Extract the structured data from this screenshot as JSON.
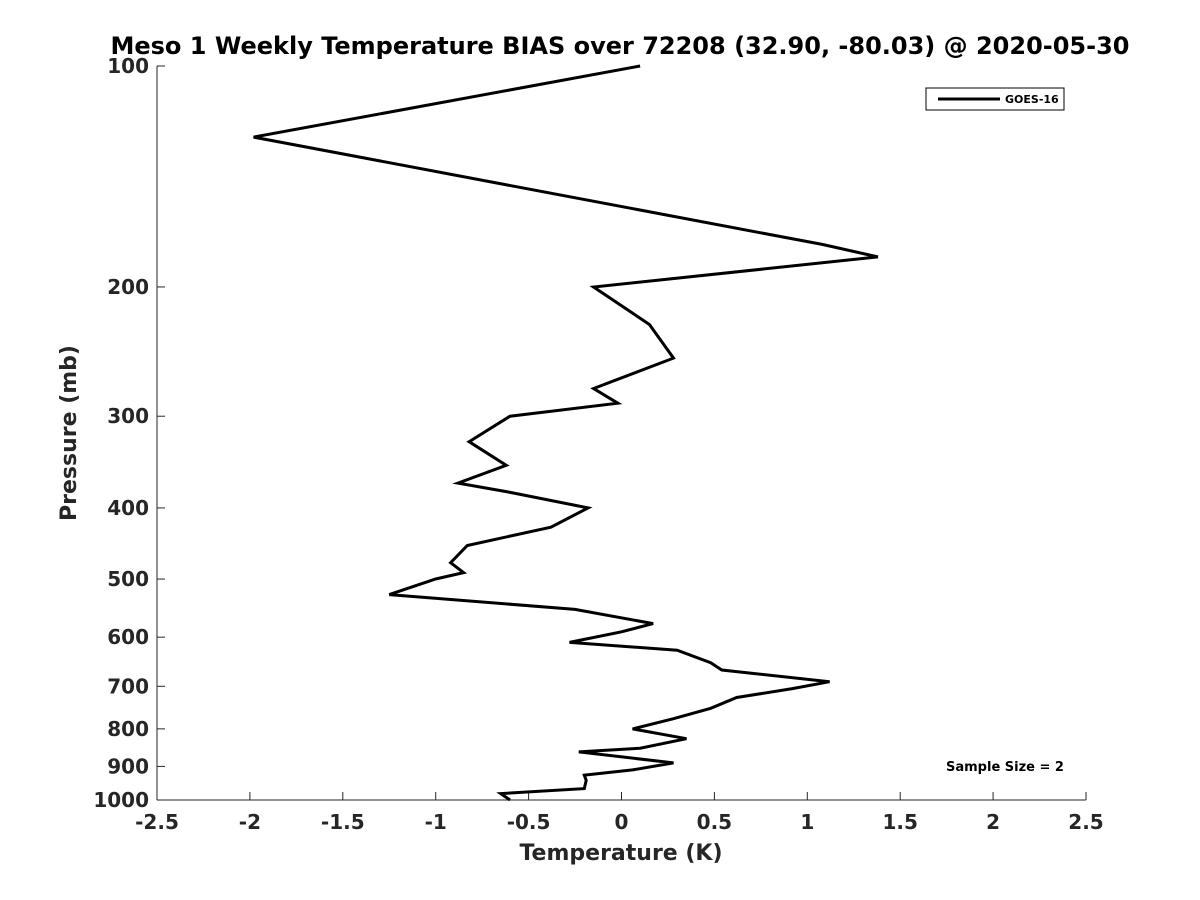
{
  "chart_data": {
    "type": "line",
    "title": "Meso 1 Weekly Temperature BIAS over 72208 (32.90, -80.03) @ 2020-05-30",
    "xlabel": "Temperature (K)",
    "ylabel": "Pressure (mb)",
    "xlim": [
      -2.5,
      2.5
    ],
    "ylim": [
      1000,
      100
    ],
    "yscale": "log",
    "grid": false,
    "legend_position": "top-right",
    "x_ticks": [
      "-2.5",
      "-2",
      "-1.5",
      "-1",
      "-0.5",
      "0",
      "0.5",
      "1",
      "1.5",
      "2",
      "2.5"
    ],
    "y_ticks": [
      "100",
      "200",
      "300",
      "400",
      "500",
      "600",
      "700",
      "800",
      "900",
      "1000"
    ],
    "annotation": "Sample Size = 2",
    "series": [
      {
        "name": "GOES-16",
        "color": "#000000",
        "points": [
          {
            "t": 0.1,
            "p": 100
          },
          {
            "t": -1.98,
            "p": 125
          },
          {
            "t": 1.08,
            "p": 175
          },
          {
            "t": 1.38,
            "p": 182
          },
          {
            "t": -0.15,
            "p": 200
          },
          {
            "t": 0.15,
            "p": 225
          },
          {
            "t": 0.28,
            "p": 250
          },
          {
            "t": -0.15,
            "p": 275
          },
          {
            "t": -0.02,
            "p": 288
          },
          {
            "t": -0.6,
            "p": 300
          },
          {
            "t": -0.82,
            "p": 325
          },
          {
            "t": -0.62,
            "p": 350
          },
          {
            "t": -0.88,
            "p": 370
          },
          {
            "t": -0.62,
            "p": 380
          },
          {
            "t": -0.18,
            "p": 400
          },
          {
            "t": -0.38,
            "p": 425
          },
          {
            "t": -0.83,
            "p": 450
          },
          {
            "t": -0.92,
            "p": 475
          },
          {
            "t": -0.85,
            "p": 490
          },
          {
            "t": -1.0,
            "p": 500
          },
          {
            "t": -1.25,
            "p": 525
          },
          {
            "t": -0.25,
            "p": 550
          },
          {
            "t": 0.17,
            "p": 575
          },
          {
            "t": 0.0,
            "p": 590
          },
          {
            "t": -0.28,
            "p": 610
          },
          {
            "t": 0.3,
            "p": 625
          },
          {
            "t": 0.48,
            "p": 650
          },
          {
            "t": 0.54,
            "p": 665
          },
          {
            "t": 1.12,
            "p": 690
          },
          {
            "t": 0.92,
            "p": 705
          },
          {
            "t": 0.62,
            "p": 725
          },
          {
            "t": 0.48,
            "p": 750
          },
          {
            "t": 0.28,
            "p": 775
          },
          {
            "t": 0.06,
            "p": 800
          },
          {
            "t": 0.35,
            "p": 825
          },
          {
            "t": 0.1,
            "p": 850
          },
          {
            "t": -0.23,
            "p": 860
          },
          {
            "t": 0.28,
            "p": 890
          },
          {
            "t": 0.06,
            "p": 910
          },
          {
            "t": -0.2,
            "p": 925
          },
          {
            "t": -0.19,
            "p": 940
          },
          {
            "t": -0.2,
            "p": 965
          },
          {
            "t": -0.65,
            "p": 980
          },
          {
            "t": -0.6,
            "p": 1000
          }
        ]
      }
    ]
  }
}
